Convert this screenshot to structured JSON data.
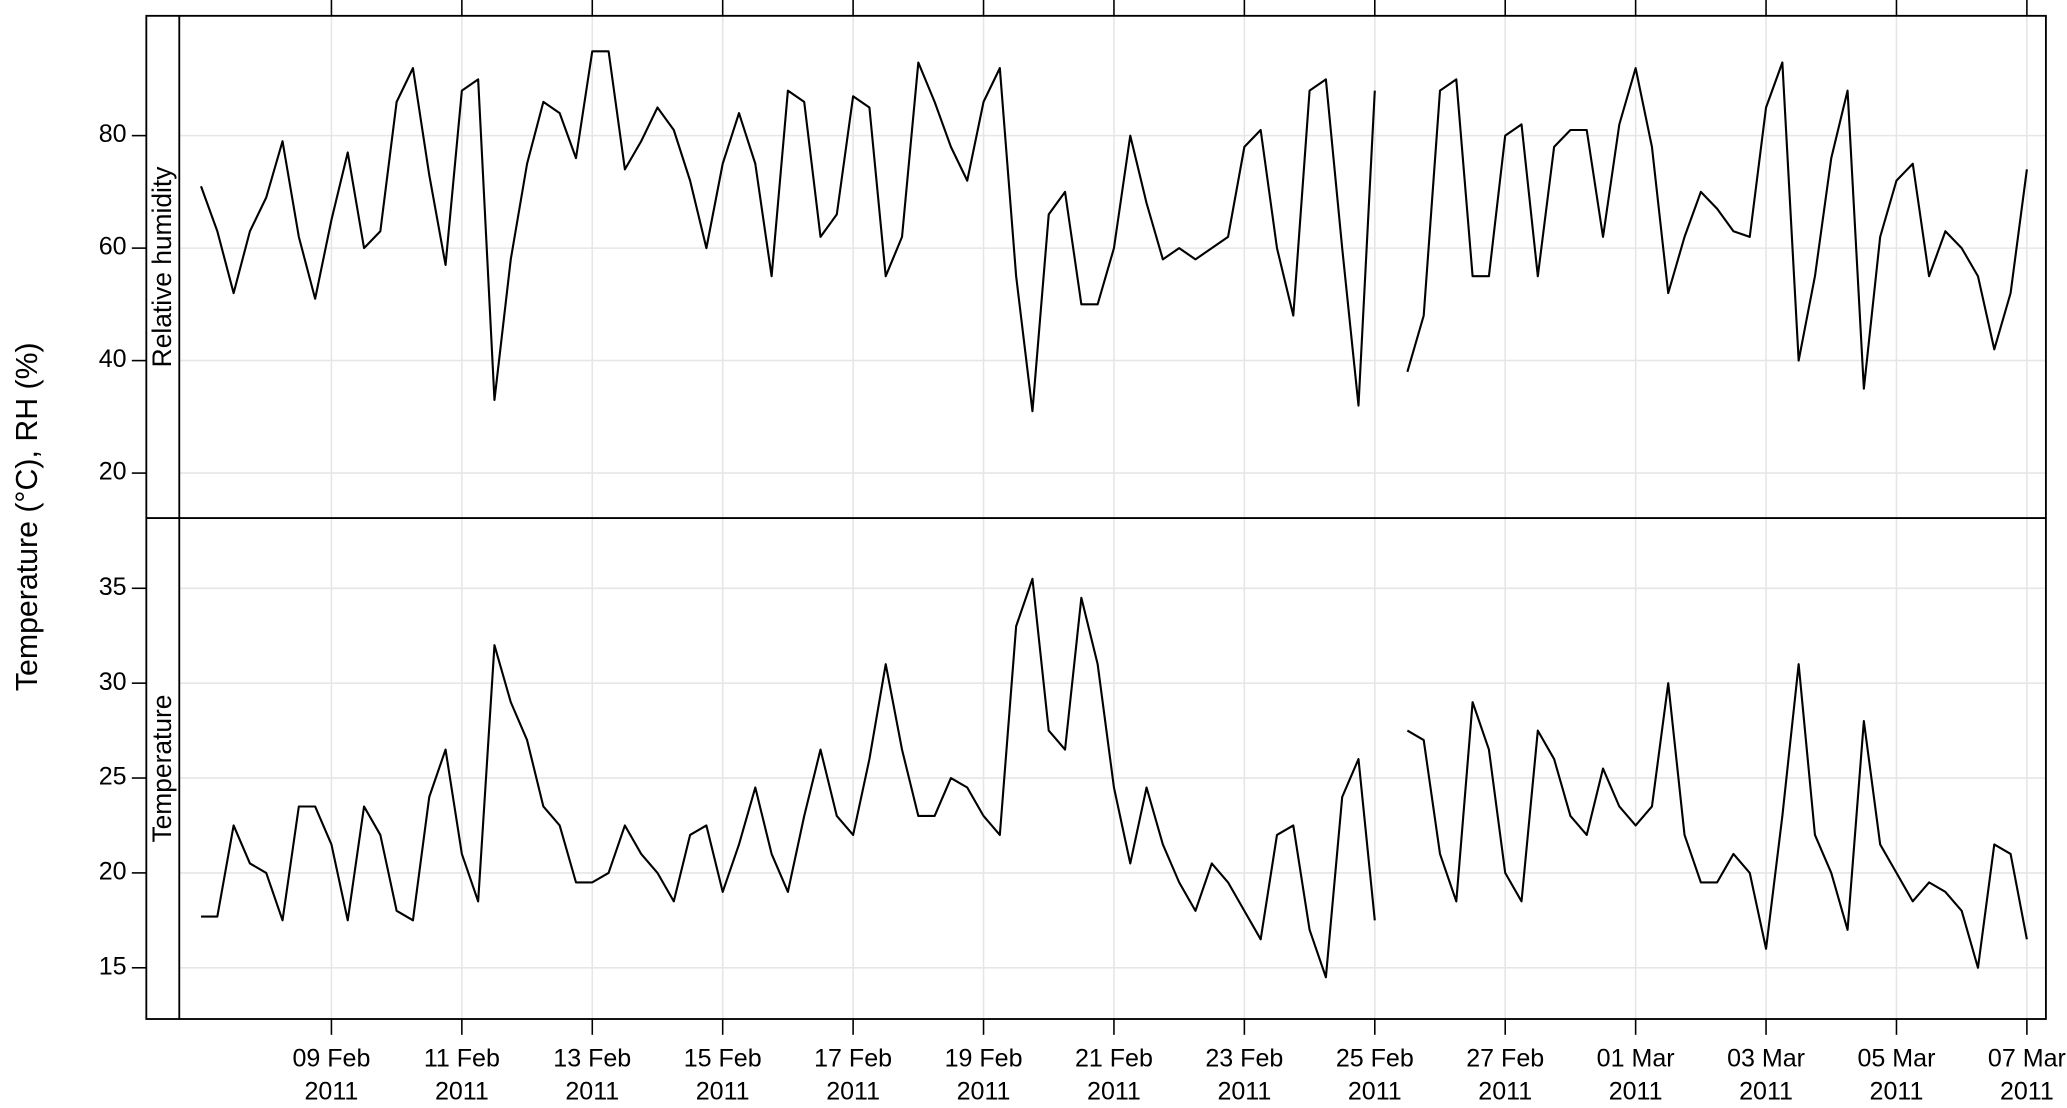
{
  "chart_data": {
    "type": "line",
    "ylabel": "Temperature (°C), RH (%)",
    "grid": true,
    "xlim": [
      "2011-02-06T16:00",
      "2011-03-07T07:00"
    ],
    "xticks": [
      {
        "value": "2011-02-09T00:00",
        "label": [
          "09 Feb",
          "2011"
        ]
      },
      {
        "value": "2011-02-11T00:00",
        "label": [
          "11 Feb",
          "2011"
        ]
      },
      {
        "value": "2011-02-13T00:00",
        "label": [
          "13 Feb",
          "2011"
        ]
      },
      {
        "value": "2011-02-15T00:00",
        "label": [
          "15 Feb",
          "2011"
        ]
      },
      {
        "value": "2011-02-17T00:00",
        "label": [
          "17 Feb",
          "2011"
        ]
      },
      {
        "value": "2011-02-19T00:00",
        "label": [
          "19 Feb",
          "2011"
        ]
      },
      {
        "value": "2011-02-21T00:00",
        "label": [
          "21 Feb",
          "2011"
        ]
      },
      {
        "value": "2011-02-23T00:00",
        "label": [
          "23 Feb",
          "2011"
        ]
      },
      {
        "value": "2011-02-25T00:00",
        "label": [
          "25 Feb",
          "2011"
        ]
      },
      {
        "value": "2011-02-27T00:00",
        "label": [
          "27 Feb",
          "2011"
        ]
      },
      {
        "value": "2011-03-01T00:00",
        "label": [
          "01 Mar",
          "2011"
        ]
      },
      {
        "value": "2011-03-03T00:00",
        "label": [
          "03 Mar",
          "2011"
        ]
      },
      {
        "value": "2011-03-05T00:00",
        "label": [
          "05 Mar",
          "2011"
        ]
      },
      {
        "value": "2011-03-07T00:00",
        "label": [
          "07 Mar",
          "2011"
        ]
      }
    ],
    "x": [
      "2011-02-07T00:00",
      "2011-02-07T06:00",
      "2011-02-07T12:00",
      "2011-02-07T18:00",
      "2011-02-08T00:00",
      "2011-02-08T06:00",
      "2011-02-08T12:00",
      "2011-02-08T18:00",
      "2011-02-09T00:00",
      "2011-02-09T06:00",
      "2011-02-09T12:00",
      "2011-02-09T18:00",
      "2011-02-10T00:00",
      "2011-02-10T06:00",
      "2011-02-10T12:00",
      "2011-02-10T18:00",
      "2011-02-11T00:00",
      "2011-02-11T06:00",
      "2011-02-11T12:00",
      "2011-02-11T18:00",
      "2011-02-12T00:00",
      "2011-02-12T06:00",
      "2011-02-12T12:00",
      "2011-02-12T18:00",
      "2011-02-13T00:00",
      "2011-02-13T06:00",
      "2011-02-13T12:00",
      "2011-02-13T18:00",
      "2011-02-14T00:00",
      "2011-02-14T06:00",
      "2011-02-14T12:00",
      "2011-02-14T18:00",
      "2011-02-15T00:00",
      "2011-02-15T06:00",
      "2011-02-15T12:00",
      "2011-02-15T18:00",
      "2011-02-16T00:00",
      "2011-02-16T06:00",
      "2011-02-16T12:00",
      "2011-02-16T18:00",
      "2011-02-17T00:00",
      "2011-02-17T06:00",
      "2011-02-17T12:00",
      "2011-02-17T18:00",
      "2011-02-18T00:00",
      "2011-02-18T06:00",
      "2011-02-18T12:00",
      "2011-02-18T18:00",
      "2011-02-19T00:00",
      "2011-02-19T06:00",
      "2011-02-19T12:00",
      "2011-02-19T18:00",
      "2011-02-20T00:00",
      "2011-02-20T06:00",
      "2011-02-20T12:00",
      "2011-02-20T18:00",
      "2011-02-21T00:00",
      "2011-02-21T06:00",
      "2011-02-21T12:00",
      "2011-02-21T18:00",
      "2011-02-22T00:00",
      "2011-02-22T06:00",
      "2011-02-22T12:00",
      "2011-02-22T18:00",
      "2011-02-23T00:00",
      "2011-02-23T06:00",
      "2011-02-23T12:00",
      "2011-02-23T18:00",
      "2011-02-24T00:00",
      "2011-02-24T06:00",
      "2011-02-24T12:00",
      "2011-02-24T18:00",
      "2011-02-25T00:00",
      "2011-02-25T06:00",
      "2011-02-25T12:00",
      "2011-02-25T18:00",
      "2011-02-26T00:00",
      "2011-02-26T06:00",
      "2011-02-26T12:00",
      "2011-02-26T18:00",
      "2011-02-27T00:00",
      "2011-02-27T06:00",
      "2011-02-27T12:00",
      "2011-02-27T18:00",
      "2011-02-28T00:00",
      "2011-02-28T06:00",
      "2011-02-28T12:00",
      "2011-02-28T18:00",
      "2011-03-01T00:00",
      "2011-03-01T06:00",
      "2011-03-01T12:00",
      "2011-03-01T18:00",
      "2011-03-02T00:00",
      "2011-03-02T06:00",
      "2011-03-02T12:00",
      "2011-03-02T18:00",
      "2011-03-03T00:00",
      "2011-03-03T06:00",
      "2011-03-03T12:00",
      "2011-03-03T18:00",
      "2011-03-04T00:00",
      "2011-03-04T06:00",
      "2011-03-04T12:00",
      "2011-03-04T18:00",
      "2011-03-05T00:00",
      "2011-03-05T06:00",
      "2011-03-05T12:00",
      "2011-03-05T18:00",
      "2011-03-06T00:00",
      "2011-03-06T06:00",
      "2011-03-06T12:00",
      "2011-03-06T18:00",
      "2011-03-07T00:00"
    ],
    "panels": [
      {
        "title": "Relative humidity",
        "ylim": [
          12,
          101.3
        ],
        "yticks": [
          20,
          40,
          60,
          80
        ],
        "color": "#000000",
        "values": [
          71,
          63,
          52,
          63,
          69,
          79,
          62,
          51,
          65,
          77,
          60,
          63,
          86,
          92,
          73,
          57,
          88,
          90,
          33,
          58,
          75,
          86,
          84,
          76,
          95,
          95,
          74,
          79,
          85,
          81,
          72,
          60,
          75,
          84,
          75,
          55,
          88,
          86,
          62,
          66,
          87,
          85,
          55,
          62,
          93,
          86,
          78,
          72,
          86,
          92,
          55,
          31,
          66,
          70,
          50,
          50,
          60,
          80,
          68,
          58,
          60,
          58,
          60,
          62,
          78,
          81,
          60,
          48,
          88,
          90,
          60,
          32,
          88,
          null,
          38,
          48,
          88,
          90,
          55,
          55,
          80,
          82,
          55,
          78,
          81,
          81,
          62,
          82,
          92,
          78,
          52,
          62,
          70,
          67,
          63,
          62,
          85,
          93,
          40,
          55,
          76,
          88,
          35,
          62,
          72,
          75,
          55,
          63,
          60,
          55,
          42,
          52,
          74
        ]
      },
      {
        "title": "Temperature",
        "ylim": [
          12.3,
          38.7
        ],
        "yticks": [
          15,
          20,
          25,
          30,
          35
        ],
        "color": "#000000",
        "values": [
          17.7,
          17.7,
          22.5,
          20.5,
          20,
          17.5,
          23.5,
          23.5,
          21.5,
          17.5,
          23.5,
          22,
          18,
          17.5,
          24,
          26.5,
          21,
          18.5,
          32,
          29,
          27,
          23.5,
          22.5,
          19.5,
          19.5,
          20,
          22.5,
          21,
          20,
          18.5,
          22,
          22.5,
          19,
          21.5,
          24.5,
          21,
          19,
          23,
          26.5,
          23,
          22,
          26,
          31,
          26.5,
          23,
          23,
          25,
          24.5,
          23,
          22,
          33,
          35.5,
          27.5,
          26.5,
          34.5,
          31,
          24.5,
          20.5,
          24.5,
          21.5,
          19.5,
          18,
          20.5,
          19.5,
          18,
          16.5,
          22,
          22.5,
          17,
          14.5,
          24,
          26,
          17.5,
          null,
          27.5,
          27,
          21,
          18.5,
          29,
          26.5,
          20,
          18.5,
          27.5,
          26,
          23,
          22,
          25.5,
          23.5,
          22.5,
          23.5,
          30,
          22,
          19.5,
          19.5,
          21,
          20,
          16,
          23,
          31,
          22,
          20,
          17,
          28,
          21.5,
          20,
          18.5,
          19.5,
          19,
          18,
          15,
          21.5,
          21,
          16.5
        ]
      }
    ]
  }
}
